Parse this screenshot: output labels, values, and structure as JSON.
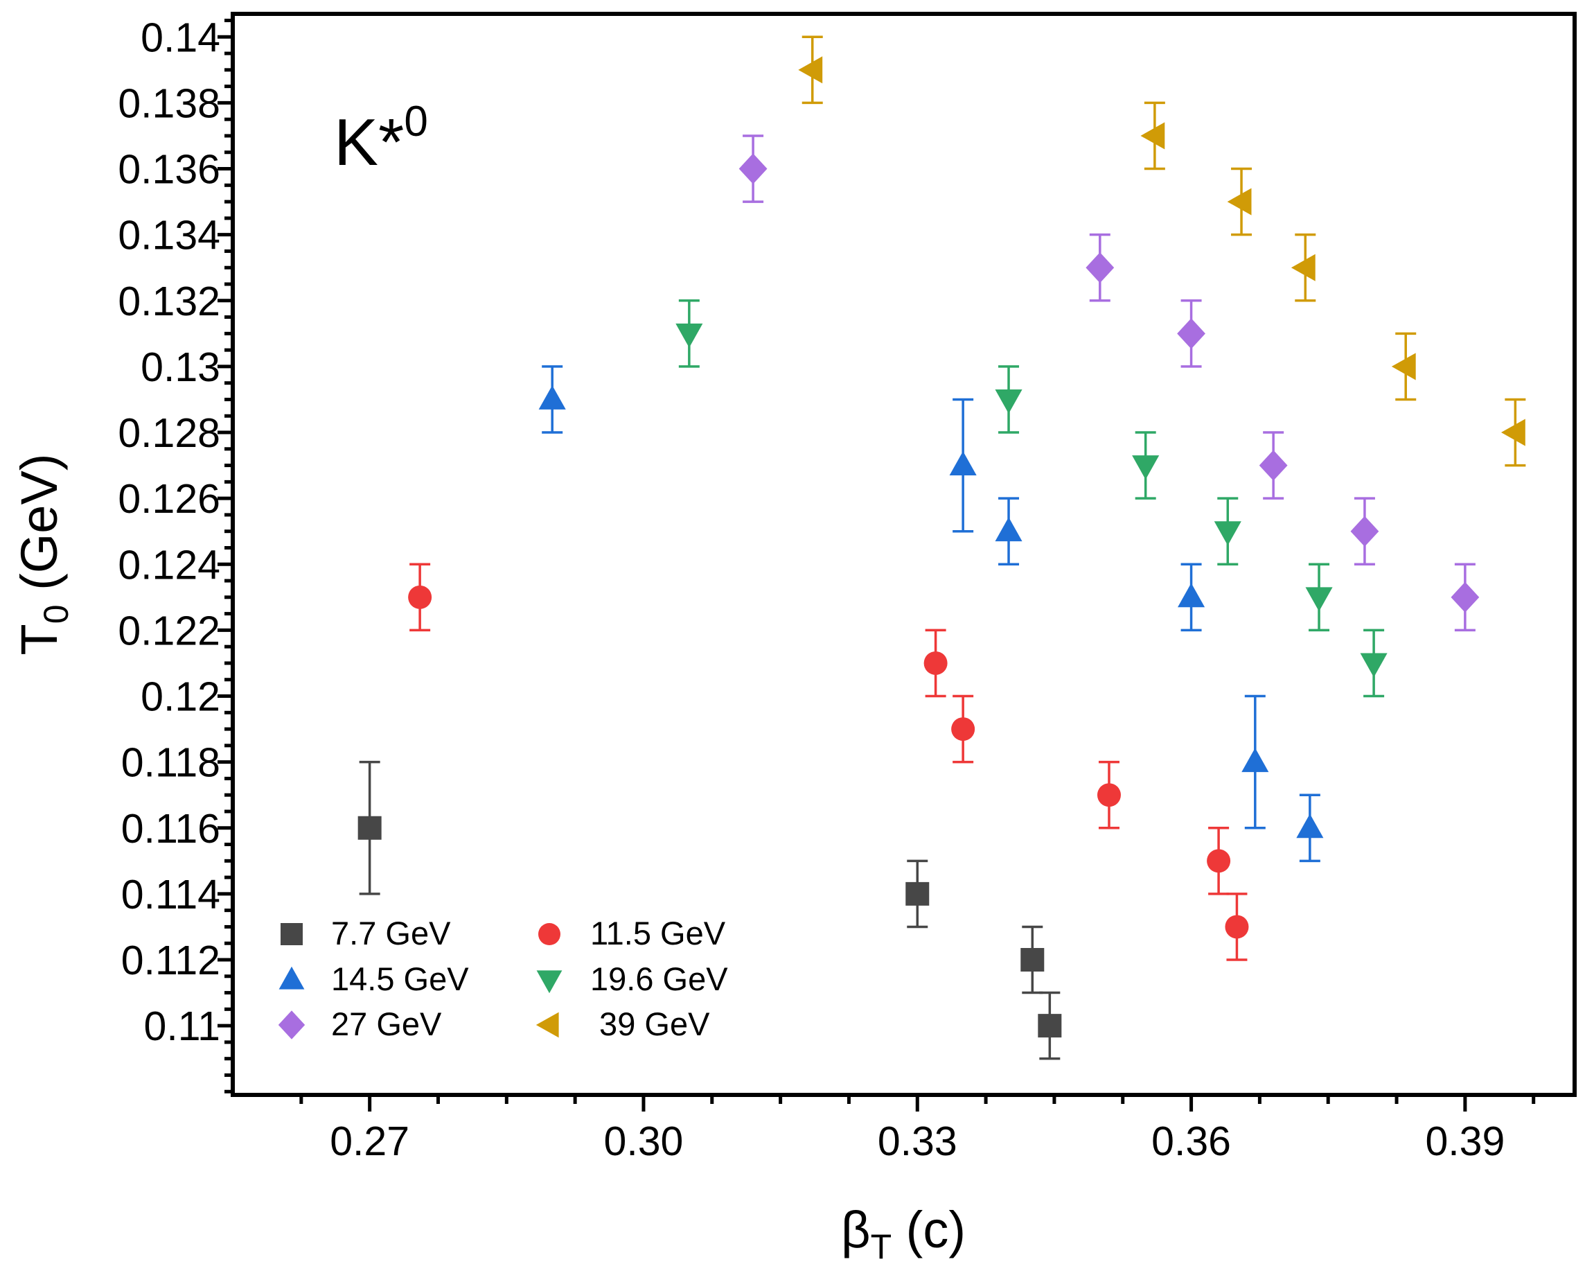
{
  "chart_data": {
    "type": "scatter",
    "title": "",
    "annotation": {
      "base": "K*",
      "sup": "0"
    },
    "xlabel": {
      "main": "β",
      "sub": "T",
      "rest": " (c)"
    },
    "ylabel": {
      "main": "T",
      "sub": "0",
      "rest": " (GeV)"
    },
    "xlim": [
      0.255,
      0.402
    ],
    "ylim": [
      0.1079,
      0.1407
    ],
    "xticks": [
      "0.27",
      "0.30",
      "0.33",
      "0.36",
      "0.39"
    ],
    "xtick_values": [
      0.27,
      0.3,
      0.33,
      0.36,
      0.39
    ],
    "yticks": [
      "0.11",
      "0.112",
      "0.114",
      "0.116",
      "0.118",
      "0.12",
      "0.122",
      "0.124",
      "0.126",
      "0.128",
      "0.13",
      "0.132",
      "0.134",
      "0.136",
      "0.138",
      "0.14"
    ],
    "ytick_values": [
      0.11,
      0.112,
      0.114,
      0.116,
      0.118,
      0.12,
      0.122,
      0.124,
      0.126,
      0.128,
      0.13,
      0.132,
      0.134,
      0.136,
      0.138,
      0.14
    ],
    "legend_position": "bottom-left",
    "series": [
      {
        "name": "7.7 GeV",
        "marker": "square",
        "color": "#474747",
        "points": [
          {
            "x": 0.27,
            "y": 0.116,
            "err": 0.002
          },
          {
            "x": 0.33,
            "y": 0.114,
            "err": 0.001
          },
          {
            "x": 0.3426,
            "y": 0.112,
            "err": 0.001
          },
          {
            "x": 0.3445,
            "y": 0.11,
            "err": 0.001
          }
        ]
      },
      {
        "name": "11.5 GeV",
        "marker": "circle",
        "color": "#ee3838",
        "points": [
          {
            "x": 0.2755,
            "y": 0.123,
            "err": 0.001
          },
          {
            "x": 0.332,
            "y": 0.121,
            "err": 0.001
          },
          {
            "x": 0.335,
            "y": 0.119,
            "err": 0.001
          },
          {
            "x": 0.351,
            "y": 0.117,
            "err": 0.001
          },
          {
            "x": 0.363,
            "y": 0.115,
            "err": 0.001
          },
          {
            "x": 0.365,
            "y": 0.113,
            "err": 0.001
          }
        ]
      },
      {
        "name": "14.5 GeV",
        "marker": "triangle-up",
        "color": "#1f6fd6",
        "points": [
          {
            "x": 0.29,
            "y": 0.129,
            "err": 0.001
          },
          {
            "x": 0.335,
            "y": 0.127,
            "err": 0.002
          },
          {
            "x": 0.34,
            "y": 0.125,
            "err": 0.001
          },
          {
            "x": 0.36,
            "y": 0.123,
            "err": 0.001
          },
          {
            "x": 0.367,
            "y": 0.118,
            "err": 0.002
          },
          {
            "x": 0.373,
            "y": 0.116,
            "err": 0.001
          }
        ]
      },
      {
        "name": "19.6 GeV",
        "marker": "triangle-down",
        "color": "#2fa866",
        "points": [
          {
            "x": 0.305,
            "y": 0.131,
            "err": 0.001
          },
          {
            "x": 0.34,
            "y": 0.129,
            "err": 0.001
          },
          {
            "x": 0.355,
            "y": 0.127,
            "err": 0.001
          },
          {
            "x": 0.364,
            "y": 0.125,
            "err": 0.001
          },
          {
            "x": 0.374,
            "y": 0.123,
            "err": 0.001
          },
          {
            "x": 0.38,
            "y": 0.121,
            "err": 0.001
          }
        ]
      },
      {
        "name": "27 GeV",
        "marker": "diamond",
        "color": "#a86ee0",
        "points": [
          {
            "x": 0.312,
            "y": 0.136,
            "err": 0.001
          },
          {
            "x": 0.35,
            "y": 0.133,
            "err": 0.001
          },
          {
            "x": 0.36,
            "y": 0.131,
            "err": 0.001
          },
          {
            "x": 0.369,
            "y": 0.127,
            "err": 0.001
          },
          {
            "x": 0.379,
            "y": 0.125,
            "err": 0.001
          },
          {
            "x": 0.39,
            "y": 0.123,
            "err": 0.001
          }
        ]
      },
      {
        "name": " 39 GeV",
        "marker": "triangle-left",
        "color": "#d09b07",
        "points": [
          {
            "x": 0.3185,
            "y": 0.139,
            "err": 0.001
          },
          {
            "x": 0.356,
            "y": 0.137,
            "err": 0.001
          },
          {
            "x": 0.3655,
            "y": 0.135,
            "err": 0.001
          },
          {
            "x": 0.3725,
            "y": 0.133,
            "err": 0.001
          },
          {
            "x": 0.3835,
            "y": 0.13,
            "err": 0.001
          },
          {
            "x": 0.3955,
            "y": 0.128,
            "err": 0.001
          }
        ]
      }
    ]
  }
}
